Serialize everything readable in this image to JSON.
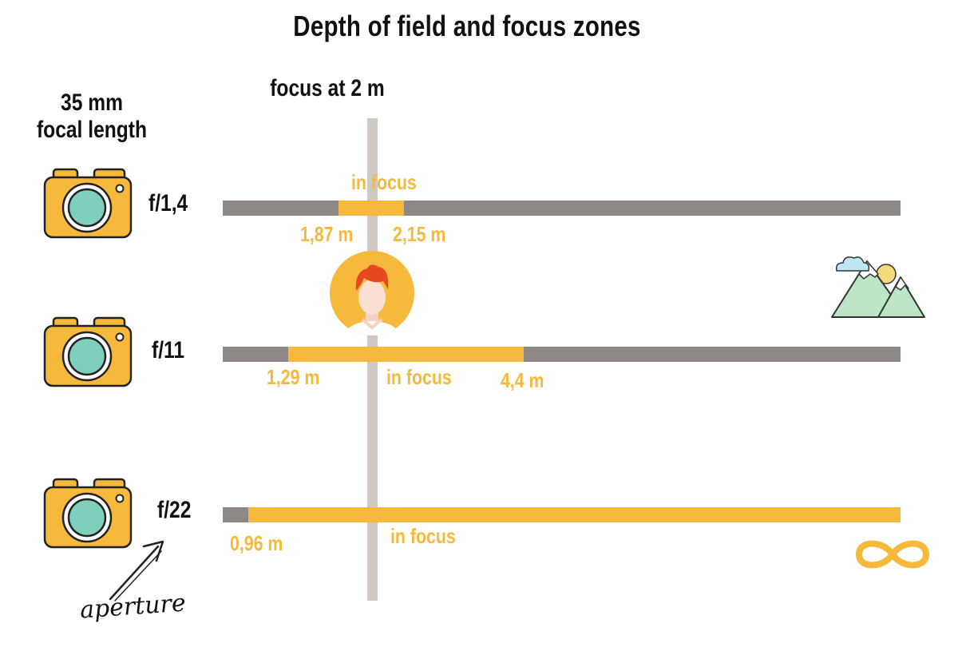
{
  "title": "Depth of field and focus zones",
  "lens_label": {
    "line1": "35 mm",
    "line2": "focal length"
  },
  "focus_label": "focus at 2 m",
  "colors": {
    "in_focus": "#f6b93b",
    "out_of_focus": "#8d8785",
    "focus_axis": "#cfc8c2",
    "camera_body": "#f6b93b",
    "camera_lens": "#7fcfbf"
  },
  "rows": [
    {
      "aperture": "f/1,4",
      "near": "1,87 m",
      "far": "2,15 m",
      "focus_text": "in focus"
    },
    {
      "aperture": "f/11",
      "near": "1,29 m",
      "far": "4,4 m",
      "focus_text": "in focus"
    },
    {
      "aperture": "f/22",
      "near": "0,96 m",
      "far": "",
      "focus_text": "in focus"
    }
  ],
  "aperture_note": "aperture",
  "icons": [
    "camera-icon",
    "person-icon",
    "mountain-landscape-icon",
    "infinity-icon",
    "arrow-icon"
  ]
}
